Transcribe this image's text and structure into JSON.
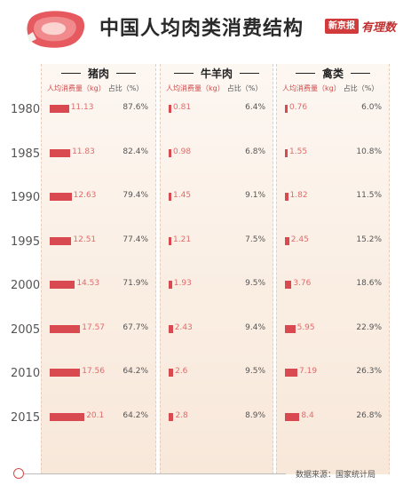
{
  "header": {
    "title": "中国人均肉类消费结构",
    "brand_box": "新京报",
    "brand_script": "有理数"
  },
  "columns": {
    "amount_label": "人均消费量（kg）",
    "share_label": "占比（%）"
  },
  "footer": {
    "source": "数据来源：国家统计局"
  },
  "colors": {
    "bar": "#d84a4f",
    "bar_value": "#e06b6b",
    "panel": "#faeee3",
    "accent": "#d23b3b"
  },
  "chart_data": {
    "type": "bar",
    "title": "中国人均肉类消费结构",
    "categories": [
      "1980",
      "1985",
      "1990",
      "1995",
      "2000",
      "2005",
      "2010",
      "2015"
    ],
    "groups": [
      {
        "name": "猪肉",
        "amount_labels": [
          "11.13",
          "11.83",
          "12.63",
          "12.51",
          "14.53",
          "17.57",
          "17.56",
          "20.1"
        ],
        "amount": [
          11.13,
          11.83,
          12.63,
          12.51,
          14.53,
          17.57,
          17.56,
          20.1
        ],
        "share_labels": [
          "87.6%",
          "82.4%",
          "79.4%",
          "77.4%",
          "71.9%",
          "67.7%",
          "64.2%",
          "64.2%"
        ],
        "share": [
          87.6,
          82.4,
          79.4,
          77.4,
          71.9,
          67.7,
          64.2,
          64.2
        ]
      },
      {
        "name": "牛羊肉",
        "amount_labels": [
          "0.81",
          "0.98",
          "1.45",
          "1.21",
          "1.93",
          "2.43",
          "2.6",
          "2.8"
        ],
        "amount": [
          0.81,
          0.98,
          1.45,
          1.21,
          1.93,
          2.43,
          2.6,
          2.8
        ],
        "share_labels": [
          "6.4%",
          "6.8%",
          "9.1%",
          "7.5%",
          "9.5%",
          "9.4%",
          "9.5%",
          "8.9%"
        ],
        "share": [
          6.4,
          6.8,
          9.1,
          7.5,
          9.5,
          9.4,
          9.5,
          8.9
        ]
      },
      {
        "name": "禽类",
        "amount_labels": [
          "0.76",
          "1.55",
          "1.82",
          "2.45",
          "3.76",
          "5.95",
          "7.19",
          "8.4"
        ],
        "amount": [
          0.76,
          1.55,
          1.82,
          2.45,
          3.76,
          5.95,
          7.19,
          8.4
        ],
        "share_labels": [
          "6.0%",
          "10.8%",
          "11.5%",
          "15.2%",
          "18.6%",
          "22.9%",
          "26.3%",
          "26.8%"
        ],
        "share": [
          6.0,
          10.8,
          11.5,
          15.2,
          18.6,
          22.9,
          26.3,
          26.8
        ]
      }
    ]
  }
}
